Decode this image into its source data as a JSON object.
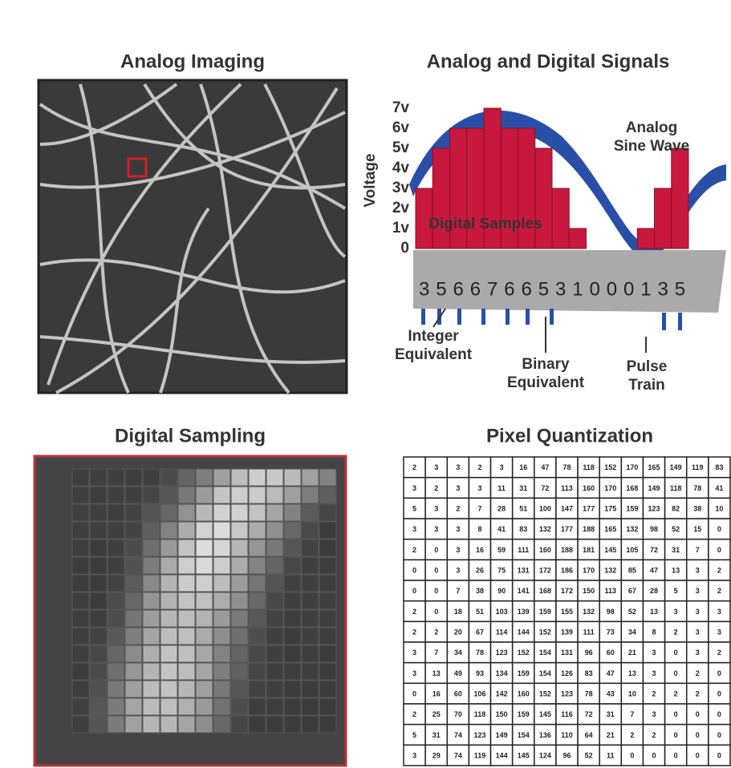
{
  "analog_imaging": {
    "title": "Analog Imaging"
  },
  "signals": {
    "title": "Analog and Digital Signals",
    "axis_label": "Voltage",
    "voltage_ticks": [
      "7v",
      "6v",
      "5v",
      "4v",
      "3v",
      "2v",
      "1v",
      "0"
    ],
    "wave_label": [
      "Analog",
      "Sine Wave"
    ],
    "samples_label": "Digital Samples",
    "digits": [
      3,
      5,
      6,
      6,
      7,
      6,
      6,
      5,
      3,
      1,
      0,
      0,
      0,
      1,
      3,
      5
    ],
    "integer_label": [
      "Integer",
      "Equivalent"
    ],
    "binary_label": [
      "Binary",
      "Equivalent"
    ],
    "pulse_label": [
      "Pulse",
      "Train"
    ]
  },
  "sampling": {
    "title": "Digital Sampling"
  },
  "quantization": {
    "title": "Pixel Quantization",
    "rows": [
      [
        2,
        3,
        3,
        2,
        3,
        16,
        47,
        78,
        118,
        152,
        170,
        165,
        149,
        119,
        83
      ],
      [
        3,
        2,
        3,
        3,
        11,
        31,
        72,
        113,
        160,
        170,
        168,
        149,
        118,
        78,
        41
      ],
      [
        5,
        3,
        2,
        7,
        28,
        51,
        100,
        147,
        177,
        175,
        159,
        123,
        82,
        38,
        10
      ],
      [
        3,
        3,
        3,
        8,
        41,
        83,
        132,
        177,
        188,
        165,
        132,
        98,
        52,
        15,
        0
      ],
      [
        2,
        0,
        3,
        16,
        59,
        111,
        160,
        188,
        181,
        145,
        105,
        72,
        31,
        7,
        0
      ],
      [
        0,
        0,
        3,
        26,
        75,
        131,
        172,
        186,
        170,
        132,
        85,
        47,
        13,
        3,
        2
      ],
      [
        0,
        0,
        7,
        38,
        90,
        141,
        168,
        172,
        150,
        113,
        67,
        28,
        5,
        3,
        2
      ],
      [
        2,
        0,
        18,
        51,
        103,
        139,
        159,
        155,
        132,
        98,
        52,
        13,
        3,
        3,
        3
      ],
      [
        2,
        2,
        20,
        67,
        114,
        144,
        152,
        139,
        111,
        73,
        34,
        8,
        2,
        3,
        3
      ],
      [
        3,
        7,
        34,
        78,
        123,
        152,
        154,
        131,
        96,
        60,
        21,
        3,
        0,
        3,
        2
      ],
      [
        3,
        13,
        49,
        93,
        134,
        159,
        154,
        126,
        83,
        47,
        13,
        3,
        0,
        2,
        0
      ],
      [
        0,
        16,
        60,
        106,
        142,
        160,
        152,
        123,
        78,
        43,
        10,
        2,
        2,
        2,
        0
      ],
      [
        2,
        25,
        70,
        118,
        150,
        159,
        145,
        116,
        72,
        31,
        7,
        3,
        0,
        0,
        0
      ],
      [
        5,
        31,
        74,
        123,
        149,
        154,
        136,
        110,
        64,
        21,
        2,
        2,
        0,
        0,
        0
      ],
      [
        3,
        29,
        74,
        119,
        144,
        145,
        124,
        96,
        52,
        11,
        0,
        0,
        0,
        0,
        0
      ]
    ]
  }
}
